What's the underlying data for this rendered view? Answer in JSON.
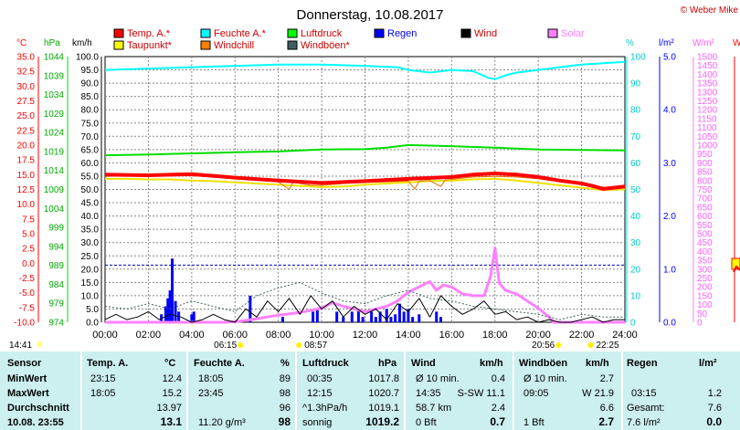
{
  "title": "Donnerstag, 10.08.2017",
  "copyright": "© Weber Mike",
  "legend": [
    {
      "label": "Temp. A.*",
      "color": "#ff0000"
    },
    {
      "label": "Feuchte A.*",
      "color": "#00ffff"
    },
    {
      "label": "Luftdruck",
      "color": "#00ff00"
    },
    {
      "label": "Regen",
      "color": "#0000ff",
      "text_color": "#0000ff"
    },
    {
      "label": "Wind",
      "color": "#000000"
    },
    {
      "label": "Solar",
      "color": "#ff80ff",
      "text_color": "#ff80ff"
    },
    {
      "label": "Taupunkt*",
      "color": "#ffff00"
    },
    {
      "label": "Windchill",
      "color": "#ff8000"
    },
    {
      "label": "Windböen*",
      "color": "#406060"
    }
  ],
  "axis_units": {
    "temp": "°C",
    "pressure": "hPa",
    "wind": "km/h",
    "humidity": "%",
    "rain": "l/m²",
    "solar": "W/m²",
    "extra": "W"
  },
  "chart_data": {
    "type": "line",
    "x_label_start": "00:00",
    "x_labels": [
      "00:00",
      "02:00",
      "04:00",
      "06:00",
      "08:00",
      "10:00",
      "12:00",
      "14:00",
      "16:00",
      "18:00",
      "20:00",
      "22:00",
      "24:00"
    ],
    "axes": {
      "temp": {
        "min": -10,
        "max": 35,
        "ticks": [
          "35.0",
          "32.5",
          "30.0",
          "27.5",
          "25.0",
          "22.5",
          "20.0",
          "17.5",
          "15.0",
          "12.5",
          "10.0",
          "7.5",
          "5.0",
          "2.5",
          "0.0",
          "-2.5",
          "-5.0",
          "-7.5",
          "-10.0"
        ]
      },
      "pressure": {
        "min": 974,
        "max": 1044,
        "ticks": [
          "1044",
          "1039",
          "1034",
          "1029",
          "1024",
          "1019",
          "1014",
          "1009",
          "1004",
          "999",
          "994",
          "989",
          "984",
          "979",
          "974"
        ]
      },
      "wind": {
        "min": 0,
        "max": 100,
        "ticks": [
          "100.0",
          "95.0",
          "90.0",
          "85.0",
          "80.0",
          "75.0",
          "70.0",
          "65.0",
          "60.0",
          "55.0",
          "50.0",
          "45.0",
          "40.0",
          "35.0",
          "30.0",
          "25.0",
          "20.0",
          "15.0",
          "10.0",
          "5.0",
          "0.0"
        ]
      },
      "humidity": {
        "min": 0,
        "max": 100,
        "ticks": [
          "100",
          "90",
          "80",
          "70",
          "60",
          "50",
          "40",
          "30",
          "20",
          "10",
          "0"
        ]
      },
      "rain": {
        "min": 0,
        "max": 5,
        "ticks": [
          "5.0",
          "4.0",
          "3.0",
          "2.0",
          "1.0",
          "0.0"
        ]
      },
      "solar": {
        "min": 0,
        "max": 1500,
        "ticks": [
          "1500",
          "1450",
          "1400",
          "1350",
          "1300",
          "1250",
          "1200",
          "1150",
          "1100",
          "1050",
          "1000",
          "950",
          "900",
          "850",
          "800",
          "750",
          "700",
          "650",
          "600",
          "550",
          "500",
          "450",
          "400",
          "350",
          "300",
          "250",
          "200",
          "150",
          "100",
          "50",
          "0"
        ]
      }
    },
    "series": [
      {
        "name": "Feuchte A.*",
        "axis": "humidity",
        "color": "#00ffff",
        "width": 2,
        "x": [
          0,
          2,
          4,
          6,
          8,
          10,
          12,
          13.5,
          14,
          15,
          16,
          17,
          17.7,
          18,
          18.5,
          19,
          20,
          21,
          22,
          23,
          24
        ],
        "y": [
          95,
          95.5,
          96,
          96.5,
          97,
          97,
          96.5,
          96,
          95,
          94,
          95,
          94.5,
          92,
          91.5,
          93,
          94,
          95,
          96,
          97,
          97.5,
          98
        ]
      },
      {
        "name": "Luftdruck",
        "axis": "pressure",
        "color": "#00dd00",
        "width": 2,
        "x": [
          0,
          2,
          4,
          6,
          8,
          10,
          12,
          13,
          14,
          16,
          18,
          20,
          22,
          24
        ],
        "y": [
          1018,
          1018.2,
          1018.5,
          1018.8,
          1019,
          1019.5,
          1019.6,
          1020,
          1020.7,
          1020.4,
          1020,
          1019.5,
          1019.4,
          1019.3
        ]
      },
      {
        "name": "Taupunkt*",
        "axis": "temp",
        "color": "#f0e000",
        "width": 2,
        "x": [
          0,
          1,
          2,
          3,
          4,
          5,
          6,
          7,
          8,
          9,
          10,
          11,
          12,
          13,
          14,
          15,
          16,
          17,
          18,
          19,
          20,
          21,
          22,
          23,
          24
        ],
        "y": [
          14.3,
          14.3,
          14.2,
          14.2,
          14.0,
          13.9,
          13.7,
          13.5,
          13.3,
          13.1,
          12.9,
          13.0,
          13.3,
          13.5,
          13.7,
          13.9,
          14.0,
          14.2,
          14.3,
          14.0,
          13.6,
          13.2,
          12.8,
          12.4,
          12.5
        ]
      },
      {
        "name": "Windchill",
        "axis": "temp",
        "color": "#e07000",
        "width": 1,
        "x": [
          0,
          1,
          2,
          3,
          4,
          5,
          6,
          7,
          8,
          8.5,
          8.7,
          9,
          9.5,
          10,
          11,
          12,
          13,
          14,
          14.3,
          14.5,
          15,
          15.5,
          15.7,
          16,
          17,
          18,
          19,
          20,
          21,
          22,
          23,
          24
        ],
        "y": [
          14.7,
          14.8,
          14.8,
          14.9,
          14.8,
          14.6,
          14.3,
          14.1,
          13.8,
          12.5,
          13.9,
          13.5,
          13.2,
          13.2,
          13.5,
          13.7,
          13.8,
          13.9,
          12.6,
          13.9,
          14.0,
          13.0,
          14.1,
          14.2,
          14.6,
          14.7,
          14.6,
          14.3,
          13.8,
          13.4,
          12.9,
          12.8
        ]
      },
      {
        "name": "Temp. A.*",
        "axis": "temp",
        "color": "#ff0000",
        "width": 4,
        "x": [
          0,
          2,
          4,
          6,
          8,
          10,
          12,
          14,
          16,
          17,
          18,
          19,
          20,
          21,
          22,
          22.5,
          23,
          24
        ],
        "y": [
          15.0,
          14.9,
          15.1,
          14.5,
          14.0,
          13.6,
          13.9,
          14.3,
          14.6,
          15.0,
          15.2,
          15.0,
          14.6,
          14.0,
          13.5,
          13.1,
          12.6,
          13.0
        ]
      },
      {
        "name": "Solar",
        "axis": "solar",
        "color": "#ff80ff",
        "width": 3,
        "x": [
          0,
          5.5,
          6.2,
          7,
          8,
          9,
          10,
          10.5,
          11,
          12,
          13,
          13.5,
          14,
          14.5,
          15,
          15.3,
          15.6,
          16,
          16.5,
          17,
          17.5,
          17.8,
          18,
          18.2,
          18.5,
          19,
          19.5,
          20,
          20.5,
          20.7,
          24
        ],
        "y": [
          0,
          0,
          5,
          20,
          40,
          55,
          80,
          110,
          90,
          60,
          90,
          120,
          170,
          200,
          230,
          180,
          210,
          200,
          160,
          150,
          150,
          260,
          420,
          220,
          180,
          160,
          120,
          80,
          30,
          0,
          0
        ]
      },
      {
        "name": "Windböen*",
        "axis": "wind",
        "color": "#406060",
        "width": 1,
        "dash": "2,2",
        "x": [
          0,
          1,
          2,
          3,
          4,
          5,
          6,
          7,
          8,
          9,
          10,
          11,
          12,
          13,
          14,
          15,
          16,
          17,
          18,
          19,
          20,
          21,
          22,
          23,
          24
        ],
        "y": [
          6,
          5,
          7,
          5,
          8,
          6,
          4,
          10,
          13,
          15,
          11,
          8,
          7,
          10,
          12,
          9,
          8,
          6,
          5,
          4,
          3,
          1,
          3,
          2,
          2
        ]
      },
      {
        "name": "Wind",
        "axis": "wind",
        "color": "#000000",
        "width": 1,
        "x": [
          0,
          0.5,
          1,
          1.5,
          2,
          2.5,
          3,
          3.5,
          4,
          4.5,
          5,
          5.5,
          6,
          6.5,
          7,
          7.5,
          8,
          8.5,
          9,
          9.5,
          10,
          10.5,
          11,
          11.5,
          12,
          12.5,
          13,
          13.5,
          14,
          14.5,
          15,
          15.5,
          16,
          16.5,
          17,
          17.5,
          18,
          18.5,
          19,
          19.5,
          20,
          20.5,
          21,
          21.5,
          22,
          22.5,
          23,
          23.5,
          24
        ],
        "y": [
          1,
          3,
          1,
          2,
          4,
          1,
          3,
          2,
          0,
          1,
          3,
          1,
          0,
          5,
          2,
          8,
          4,
          9,
          3,
          10,
          5,
          8,
          2,
          6,
          3,
          5,
          1,
          7,
          4,
          9,
          2,
          10,
          6,
          3,
          5,
          8,
          3,
          4,
          1,
          2,
          0,
          1,
          0,
          0,
          1,
          2,
          0,
          1,
          1
        ]
      }
    ],
    "rain_bars": [
      {
        "x": 2.6,
        "v": 0.15
      },
      {
        "x": 2.8,
        "v": 0.3
      },
      {
        "x": 2.9,
        "v": 0.45
      },
      {
        "x": 3.0,
        "v": 0.6
      },
      {
        "x": 3.1,
        "v": 1.2
      },
      {
        "x": 3.25,
        "v": 0.4
      },
      {
        "x": 3.4,
        "v": 0.2
      },
      {
        "x": 4.0,
        "v": 0.15
      },
      {
        "x": 4.1,
        "v": 0.2
      },
      {
        "x": 6.7,
        "v": 0.5
      },
      {
        "x": 8.2,
        "v": 0.1
      },
      {
        "x": 9.6,
        "v": 0.2
      },
      {
        "x": 9.8,
        "v": 0.25
      },
      {
        "x": 10.7,
        "v": 0.2
      },
      {
        "x": 11.0,
        "v": 0.1
      },
      {
        "x": 11.4,
        "v": 0.2
      },
      {
        "x": 11.7,
        "v": 0.25
      },
      {
        "x": 11.9,
        "v": 0.1
      },
      {
        "x": 12.3,
        "v": 0.2
      },
      {
        "x": 12.5,
        "v": 0.1
      },
      {
        "x": 12.7,
        "v": 0.2
      },
      {
        "x": 13.0,
        "v": 0.25
      },
      {
        "x": 13.2,
        "v": 0.1
      },
      {
        "x": 13.4,
        "v": 0.15
      },
      {
        "x": 13.6,
        "v": 0.35
      },
      {
        "x": 13.8,
        "v": 0.2
      },
      {
        "x": 14.0,
        "v": 0.25
      },
      {
        "x": 14.2,
        "v": 0.1
      },
      {
        "x": 14.5,
        "v": 0.15
      },
      {
        "x": 15.3,
        "v": 0.2
      },
      {
        "x": 15.5,
        "v": 0.1
      }
    ],
    "zero_line_wind": 21.5
  },
  "sun_markers": [
    {
      "label": "14:41",
      "hour": 0,
      "row": 0
    },
    {
      "label": "06:15",
      "hour": 6.25,
      "row": 1
    },
    {
      "label": "08:57",
      "hour": 8.95,
      "row": 1
    },
    {
      "label": "20:56",
      "hour": 20.93,
      "row": 1
    },
    {
      "label": "22:25",
      "hour": 22.42,
      "row": 1
    }
  ],
  "stats": {
    "sensor": {
      "header": "Sensor",
      "rows": [
        "MinWert",
        "MaxWert",
        "Durchschnitt",
        "10.08. 23:55"
      ]
    },
    "temp": {
      "header": "Temp. A.",
      "unit": "°C",
      "rows": [
        [
          "23:15",
          "12.4"
        ],
        [
          "18:05",
          "15.2"
        ],
        [
          "",
          "13.97"
        ],
        [
          "",
          "13.1"
        ]
      ]
    },
    "humidity": {
      "header": "Feuchte A.",
      "unit": "%",
      "rows": [
        [
          "18:05",
          "89"
        ],
        [
          "23:45",
          "98"
        ],
        [
          "",
          "96"
        ],
        [
          "11.20 g/m³",
          "98"
        ]
      ]
    },
    "pressure": {
      "header": "Luftdruck",
      "unit": "hPa",
      "rows": [
        [
          "00:35",
          "1017.8"
        ],
        [
          "12:15",
          "1020.7"
        ],
        [
          "^1.3hPa/h",
          "1019.1"
        ],
        [
          "sonnig",
          "1019.2"
        ]
      ]
    },
    "wind": {
      "header": "Wind",
      "unit": "km/h",
      "rows": [
        [
          "Ø 10 min.",
          "0.4"
        ],
        [
          "14:35",
          "S-SW 11.1"
        ],
        [
          "58.7 km",
          "2.4"
        ],
        [
          "0 Bft",
          "0.7"
        ]
      ]
    },
    "gusts": {
      "header": "Windböen",
      "unit": "km/h",
      "rows": [
        [
          "Ø 10 min.",
          "2.7"
        ],
        [
          "09:05",
          "W 21.9"
        ],
        [
          "",
          "6.6"
        ],
        [
          "1 Bft",
          "2.7"
        ]
      ]
    },
    "rain": {
      "header": "Regen",
      "unit": "l/m²",
      "rows": [
        [
          "",
          ""
        ],
        [
          "03:15",
          "1.2"
        ],
        [
          "Gesamt:",
          "7.6"
        ],
        [
          "7.6 l/m²",
          "0.0"
        ]
      ]
    }
  }
}
